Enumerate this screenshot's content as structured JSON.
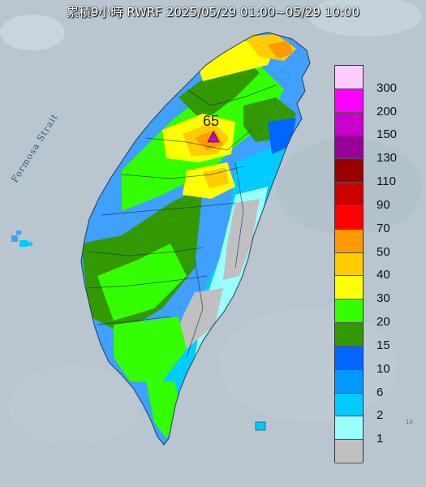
{
  "title": "累積9小時 RWRF 2025/05/29 01:00~05/29 10:00",
  "max_value_label": "65",
  "strait_label": "Formosa Strait",
  "corner_note": "10",
  "legend": [
    {
      "label": "300",
      "color": "#ffccff"
    },
    {
      "label": "200",
      "color": "#ff00ff"
    },
    {
      "label": "150",
      "color": "#cc00cc"
    },
    {
      "label": "130",
      "color": "#990099"
    },
    {
      "label": "110",
      "color": "#990000"
    },
    {
      "label": "90",
      "color": "#cc0000"
    },
    {
      "label": "70",
      "color": "#ff0000"
    },
    {
      "label": "50",
      "color": "#ff9900"
    },
    {
      "label": "40",
      "color": "#ffcc00"
    },
    {
      "label": "30",
      "color": "#ffff00"
    },
    {
      "label": "20",
      "color": "#33ff00"
    },
    {
      "label": "15",
      "color": "#339900"
    },
    {
      "label": "10",
      "color": "#0066ff"
    },
    {
      "label": "6",
      "color": "#0099ff"
    },
    {
      "label": "2",
      "color": "#00ccff"
    },
    {
      "label": "1",
      "color": "#99ffff"
    },
    {
      "label": "",
      "color": "#c0c0c0"
    }
  ],
  "colors": {
    "ocean": "#b9c6cf",
    "land_base": "#3fa0ff",
    "marker": "#cc00cc"
  }
}
